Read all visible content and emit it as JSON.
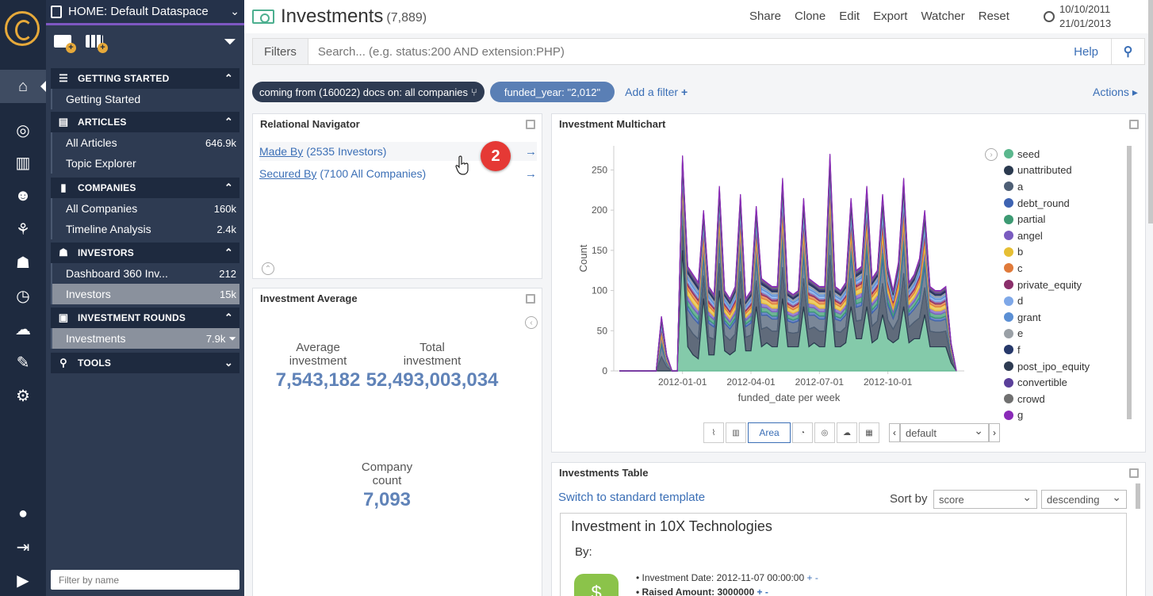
{
  "sidebar": {
    "dataspace": "HOME: Default Dataspace",
    "sections": [
      {
        "title": "GETTING STARTED",
        "items": [
          {
            "label": "Getting Started",
            "count": ""
          }
        ]
      },
      {
        "title": "ARTICLES",
        "items": [
          {
            "label": "All Articles",
            "count": "646.9k"
          },
          {
            "label": "Topic Explorer",
            "count": ""
          }
        ]
      },
      {
        "title": "COMPANIES",
        "items": [
          {
            "label": "All Companies",
            "count": "160k"
          },
          {
            "label": "Timeline Analysis",
            "count": "2.4k"
          }
        ]
      },
      {
        "title": "INVESTORS",
        "items": [
          {
            "label": "Dashboard 360 Inv...",
            "count": "212"
          },
          {
            "label": "Investors",
            "count": "15k"
          }
        ]
      },
      {
        "title": "INVESTMENT ROUNDS",
        "items": [
          {
            "label": "Investments",
            "count": "7.9k"
          }
        ]
      },
      {
        "title": "TOOLS",
        "items": []
      }
    ],
    "filter_placeholder": "Filter by name"
  },
  "header": {
    "title": "Investments",
    "count": "(7,889)",
    "menu": [
      "Share",
      "Clone",
      "Edit",
      "Export",
      "Watcher",
      "Reset"
    ],
    "time_from": "10/10/2011",
    "time_to": "21/01/2013"
  },
  "search": {
    "filters_label": "Filters",
    "placeholder": "Search... (e.g. status:200 AND extension:PHP)",
    "help": "Help"
  },
  "filters": {
    "relational": "coming from (160022) docs on: all companies",
    "funded_year": "funded_year: \"2,012\"",
    "add_filter": "Add a filter",
    "actions": "Actions"
  },
  "relational_navigator": {
    "title": "Relational Navigator",
    "rows": [
      {
        "link": "Made By",
        "count": "(2535 Investors)"
      },
      {
        "link": "Secured By",
        "count": "(7100 All Companies)"
      }
    ],
    "badge": "2"
  },
  "investment_average": {
    "title": "Investment Average",
    "metrics": [
      {
        "label_1": "Average",
        "label_2": "investment",
        "value": "7,543,182"
      },
      {
        "label_1": "Total",
        "label_2": "investment",
        "value": "52,493,003,034"
      },
      {
        "label_1": "Company",
        "label_2": "count",
        "value": "7,093"
      }
    ]
  },
  "multichart": {
    "title": "Investment Multichart",
    "active_type": "Area",
    "selector": "default"
  },
  "chart_data": {
    "type": "area",
    "stacked": true,
    "xlabel": "funded_date per week",
    "ylabel": "Count",
    "ylim": [
      0,
      280
    ],
    "yticks": [
      0,
      50,
      100,
      150,
      200,
      250
    ],
    "xticks": [
      "2012-01-01",
      "2012-04-01",
      "2012-07-01",
      "2012-10-01"
    ],
    "x": [
      "2011-10-10",
      "2011-10-17",
      "2011-10-24",
      "2011-10-31",
      "2011-11-07",
      "2011-11-14",
      "2011-11-21",
      "2011-11-28",
      "2011-12-05",
      "2011-12-12",
      "2011-12-19",
      "2011-12-26",
      "2012-01-02",
      "2012-01-09",
      "2012-01-16",
      "2012-01-23",
      "2012-01-30",
      "2012-02-06",
      "2012-02-13",
      "2012-02-20",
      "2012-02-27",
      "2012-03-05",
      "2012-03-12",
      "2012-03-19",
      "2012-03-26",
      "2012-04-02",
      "2012-04-09",
      "2012-04-16",
      "2012-04-23",
      "2012-04-30",
      "2012-05-07",
      "2012-05-14",
      "2012-05-21",
      "2012-05-28",
      "2012-06-04",
      "2012-06-11",
      "2012-06-18",
      "2012-06-25",
      "2012-07-02",
      "2012-07-09",
      "2012-07-16",
      "2012-07-23",
      "2012-07-30",
      "2012-08-06",
      "2012-08-13",
      "2012-08-20",
      "2012-08-27",
      "2012-09-03",
      "2012-09-10",
      "2012-09-17",
      "2012-09-24",
      "2012-10-01",
      "2012-10-08",
      "2012-10-15",
      "2012-10-22",
      "2012-10-29",
      "2012-11-05",
      "2012-11-12",
      "2012-11-19",
      "2012-11-26",
      "2012-12-03",
      "2012-12-10",
      "2012-12-17",
      "2012-12-24",
      "2012-12-31"
    ],
    "totals": [
      0,
      0,
      0,
      0,
      0,
      0,
      0,
      0,
      68,
      20,
      0,
      0,
      268,
      130,
      120,
      110,
      200,
      105,
      95,
      230,
      100,
      90,
      105,
      220,
      90,
      100,
      205,
      115,
      110,
      105,
      105,
      240,
      100,
      95,
      100,
      215,
      115,
      110,
      105,
      105,
      270,
      105,
      100,
      110,
      215,
      125,
      130,
      230,
      115,
      125,
      220,
      130,
      100,
      135,
      240,
      110,
      120,
      140,
      200,
      105,
      100,
      100,
      105,
      35,
      0
    ],
    "base_seed": [
      0,
      0,
      0,
      0,
      0,
      0,
      0,
      0,
      0,
      0,
      0,
      0,
      150,
      30,
      20,
      15,
      90,
      20,
      20,
      100,
      25,
      20,
      25,
      90,
      25,
      25,
      80,
      30,
      35,
      30,
      30,
      90,
      30,
      30,
      30,
      80,
      30,
      35,
      30,
      30,
      100,
      30,
      30,
      35,
      80,
      40,
      40,
      80,
      35,
      40,
      70,
      40,
      35,
      40,
      80,
      35,
      40,
      40,
      70,
      30,
      30,
      30,
      30,
      10,
      0
    ],
    "legend_position": "right",
    "series": [
      {
        "name": "seed",
        "color": "#5bb88e"
      },
      {
        "name": "unattributed",
        "color": "#2b3a4f"
      },
      {
        "name": "a",
        "color": "#4e5f75"
      },
      {
        "name": "debt_round",
        "color": "#3e63b2"
      },
      {
        "name": "partial",
        "color": "#3d9a73"
      },
      {
        "name": "angel",
        "color": "#7a5cc0"
      },
      {
        "name": "b",
        "color": "#e6bf34"
      },
      {
        "name": "c",
        "color": "#e07a3a"
      },
      {
        "name": "private_equity",
        "color": "#8a2e6a"
      },
      {
        "name": "d",
        "color": "#7fa8e8"
      },
      {
        "name": "grant",
        "color": "#5b8fd4"
      },
      {
        "name": "e",
        "color": "#9aa0a6"
      },
      {
        "name": "f",
        "color": "#26386a"
      },
      {
        "name": "post_ipo_equity",
        "color": "#2e3b52"
      },
      {
        "name": "convertible",
        "color": "#5a3f9a"
      },
      {
        "name": "crowd",
        "color": "#707070"
      },
      {
        "name": "g",
        "color": "#8a2ab8"
      }
    ]
  },
  "table": {
    "title": "Investments Table",
    "switch_link": "Switch to standard template",
    "sort_label": "Sort by",
    "sort_field": "score",
    "sort_order": "descending",
    "record_title": "Investment in 10X Technologies",
    "by_label": "By:",
    "date_label": "Investment Date:",
    "date_value": "2012-11-07 00:00:00",
    "raised_label": "Raised Amount:",
    "raised_value": "3000000",
    "pm": "+ -"
  }
}
